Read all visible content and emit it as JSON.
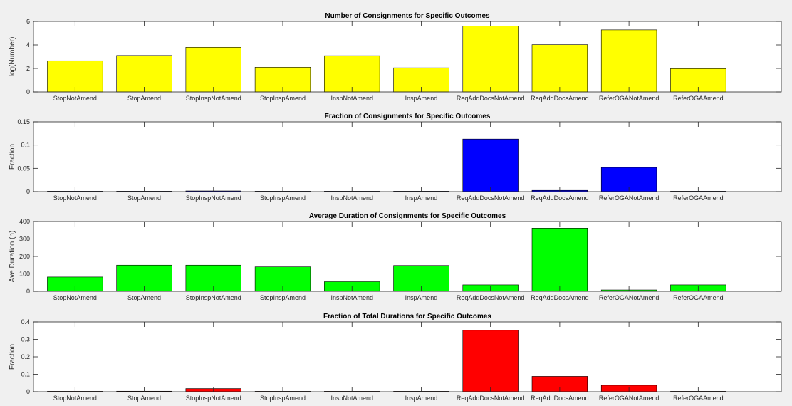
{
  "chart_data": [
    {
      "type": "bar",
      "title": "Number of  Consignments for Specific Outcomes",
      "xlabel": "",
      "ylabel": "log(Number)",
      "ylim": [
        0,
        6
      ],
      "yticks": [
        "0",
        "2",
        "4",
        "6"
      ],
      "bar_color": "#ffff00",
      "categories": [
        "StopNotAmend",
        "StopAmend",
        "StopInspNotAmend",
        "StopInspAmend",
        "InspNotAmend",
        "InspAmend",
        "ReqAddDocsNotAmend",
        "ReqAddDocsAmend",
        "ReferOGANotAmend",
        "ReferOGAAmend"
      ],
      "values": [
        2.65,
        3.1,
        3.8,
        2.1,
        3.08,
        2.05,
        5.6,
        4.02,
        5.28,
        1.98
      ]
    },
    {
      "type": "bar",
      "title": "Fraction of  Consignments for Specific Outcomes",
      "xlabel": "",
      "ylabel": "Fraction",
      "ylim": [
        0,
        0.15
      ],
      "yticks": [
        "0",
        "0.05",
        "0.1",
        "0.15"
      ],
      "bar_color": "#0000ff",
      "categories": [
        "StopNotAmend",
        "StopAmend",
        "StopInspNotAmend",
        "StopInspAmend",
        "InspNotAmend",
        "InspAmend",
        "ReqAddDocsNotAmend",
        "ReqAddDocsAmend",
        "ReferOGANotAmend",
        "ReferOGAAmend"
      ],
      "values": [
        0.0001,
        0.0003,
        0.0015,
        0.0002,
        0.0002,
        0.0001,
        0.113,
        0.0027,
        0.052,
        0.0001
      ]
    },
    {
      "type": "bar",
      "title": "Average Duration of  Consignments for Specific Outcomes",
      "xlabel": "",
      "ylabel": "Ave Duration (h)",
      "ylim": [
        0,
        400
      ],
      "yticks": [
        "0",
        "100",
        "200",
        "300",
        "400"
      ],
      "bar_color": "#00ff00",
      "categories": [
        "StopNotAmend",
        "StopAmend",
        "StopInspNotAmend",
        "StopInspAmend",
        "InspNotAmend",
        "InspAmend",
        "ReqAddDocsNotAmend",
        "ReqAddDocsAmend",
        "ReferOGANotAmend",
        "ReferOGAAmend"
      ],
      "values": [
        82,
        150,
        150,
        140,
        55,
        148,
        37,
        362,
        8,
        37
      ]
    },
    {
      "type": "bar",
      "title": "Fraction of  Total Durations for Specific Outcomes",
      "xlabel": "",
      "ylabel": "Fraction",
      "ylim": [
        0,
        0.4
      ],
      "yticks": [
        "0",
        "0.1",
        "0.2",
        "0.3",
        "0.4"
      ],
      "bar_color": "#ff0000",
      "categories": [
        "StopNotAmend",
        "StopAmend",
        "StopInspNotAmend",
        "StopInspAmend",
        "InspNotAmend",
        "InspAmend",
        "ReqAddDocsNotAmend",
        "ReqAddDocsAmend",
        "ReferOGANotAmend",
        "ReferOGAAmend"
      ],
      "values": [
        0.0004,
        0.003,
        0.018,
        0.0004,
        0.0004,
        0.0004,
        0.352,
        0.088,
        0.037,
        0.0002
      ]
    }
  ]
}
